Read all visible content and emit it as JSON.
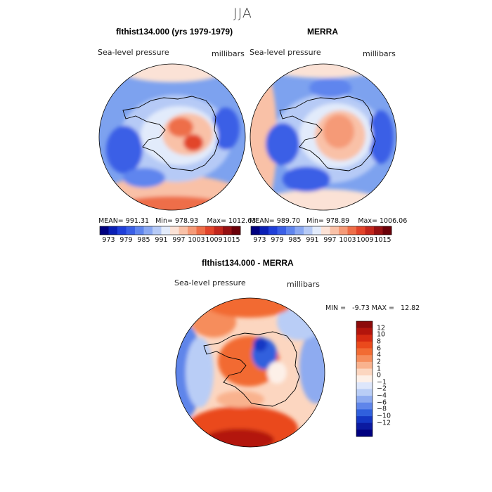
{
  "figure_title": "JJA",
  "chart_data": [
    {
      "type": "heatmap",
      "title": "flthist134.000 (yrs 1979-1979)",
      "subtitle_left": "Sea-level pressure",
      "subtitle_right": "millibars",
      "stats": {
        "mean_label": "MEAN=",
        "mean": "991.31",
        "min_label": "Min=",
        "min": "978.93",
        "max_label": "Max=",
        "max": "1012.63"
      },
      "colorbar": {
        "orientation": "horizontal",
        "levels": [
          973,
          976,
          979,
          982,
          985,
          988,
          991,
          994,
          997,
          1000,
          1003,
          1006,
          1009,
          1012,
          1015
        ],
        "tick_labels": [
          "973",
          "979",
          "985",
          "991",
          "997",
          "1003",
          "1009",
          "1015"
        ],
        "colors": [
          "#00007f",
          "#0a1fb5",
          "#1f3fd9",
          "#3a5fe6",
          "#5f85ee",
          "#8aa8f2",
          "#b6caf6",
          "#e2ebfb",
          "#fbe2d6",
          "#f9c1a7",
          "#f59a77",
          "#ee6e48",
          "#e2442a",
          "#c2261c",
          "#951012",
          "#6a0008"
        ]
      },
      "ylim": [
        978.93,
        1012.63
      ]
    },
    {
      "type": "heatmap",
      "title": "MERRA",
      "subtitle_left": "Sea-level pressure",
      "subtitle_right": "millibars",
      "stats": {
        "mean_label": "MEAN=",
        "mean": "989.70",
        "min_label": "Min=",
        "min": "978.89",
        "max_label": "Max=",
        "max": "1006.06"
      },
      "colorbar": {
        "orientation": "horizontal",
        "levels": [
          973,
          976,
          979,
          982,
          985,
          988,
          991,
          994,
          997,
          1000,
          1003,
          1006,
          1009,
          1012,
          1015
        ],
        "tick_labels": [
          "973",
          "979",
          "985",
          "991",
          "997",
          "1003",
          "1009",
          "1015"
        ],
        "colors": [
          "#00007f",
          "#0a1fb5",
          "#1f3fd9",
          "#3a5fe6",
          "#5f85ee",
          "#8aa8f2",
          "#b6caf6",
          "#e2ebfb",
          "#fbe2d6",
          "#f9c1a7",
          "#f59a77",
          "#ee6e48",
          "#e2442a",
          "#c2261c",
          "#951012",
          "#6a0008"
        ]
      },
      "ylim": [
        978.89,
        1006.06
      ]
    },
    {
      "type": "heatmap",
      "title": "flthist134.000 - MERRA",
      "subtitle_left": "Sea-level pressure",
      "subtitle_right": "millibars",
      "stats": {
        "min_label": "MIN =",
        "min": "-9.73",
        "max_label": "MAX =",
        "max": "12.82"
      },
      "colorbar": {
        "orientation": "vertical",
        "tick_labels": [
          "12",
          "10",
          "8",
          "6",
          "4",
          "2",
          "1",
          "0",
          "−1",
          "−2",
          "−4",
          "−6",
          "−8",
          "−10",
          "−12"
        ],
        "colors": [
          "#8c0a0a",
          "#b3140c",
          "#d62a12",
          "#ea4a1c",
          "#f26b33",
          "#f68d5c",
          "#f9b28e",
          "#fcd6c0",
          "#fdf0e8",
          "#dde6fb",
          "#b9cdf6",
          "#8eabf0",
          "#5f85ea",
          "#3060dd",
          "#1437c4",
          "#0b1aa0",
          "#000080"
        ]
      },
      "ylim": [
        -9.73,
        12.82
      ]
    }
  ]
}
